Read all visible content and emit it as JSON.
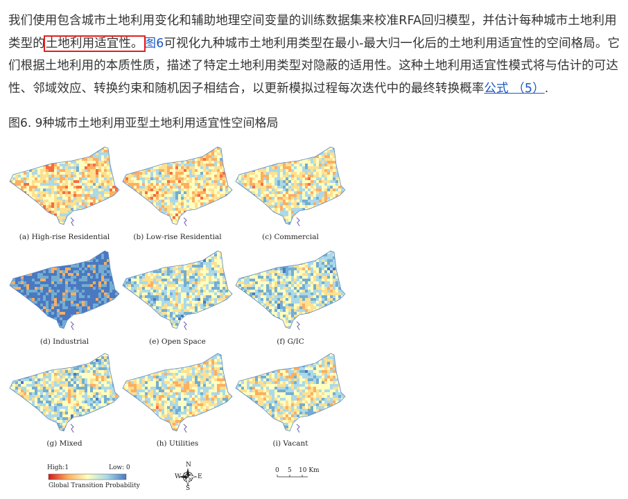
{
  "article": {
    "p1": "我们使用包含城市土地利用变化和辅助地理空间变量的训练数据集来校准RFA回归模型，并估计每种城市土地利用类型的",
    "highlight": "土地利用适宜性。",
    "fig_link": "图6",
    "p2": "可视化九种城市土地利用类型在最小-最大归一化后的土地利用适宜性的空间格局。它们根据土地利用的本质性质，描述了特定土地利用类型对隐蔽的适用性。这种土地利用适宜性模式将与估计的可达性、邻域效应、转换约束和随机因子相结合，以更新模拟过程每次迭代中的最终转换概率",
    "formula_link": "公式 （5）",
    "p3": "."
  },
  "figure": {
    "caption": "图6. 9种城市土地利用亚型土地利用适宜性空间格局",
    "panels": [
      {
        "label": "(a) High-rise Residential",
        "tone": 0.62
      },
      {
        "label": "(b) Low-rise Residential",
        "tone": 0.6
      },
      {
        "label": "(c) Commercial",
        "tone": 0.55
      },
      {
        "label": "(d) Industrial",
        "tone": 0.12
      },
      {
        "label": "(e) Open Space",
        "tone": 0.45
      },
      {
        "label": "(f) G/IC",
        "tone": 0.42
      },
      {
        "label": "(g) Mixed",
        "tone": 0.45
      },
      {
        "label": "(h) Utilities",
        "tone": 0.52
      },
      {
        "label": "(i) Vacant",
        "tone": 0.5
      }
    ],
    "legend": {
      "high": "High:1",
      "low": "Low: 0",
      "title": "Global Transition Probability",
      "colors": [
        "#d7191c",
        "#fdae61",
        "#ffffbf",
        "#abd9e9",
        "#4a79c0"
      ]
    },
    "compass": {
      "n": "N",
      "s": "S",
      "e": "E",
      "w": "W"
    },
    "scale": {
      "ticks": [
        "0",
        "5",
        "10 Km"
      ]
    }
  }
}
